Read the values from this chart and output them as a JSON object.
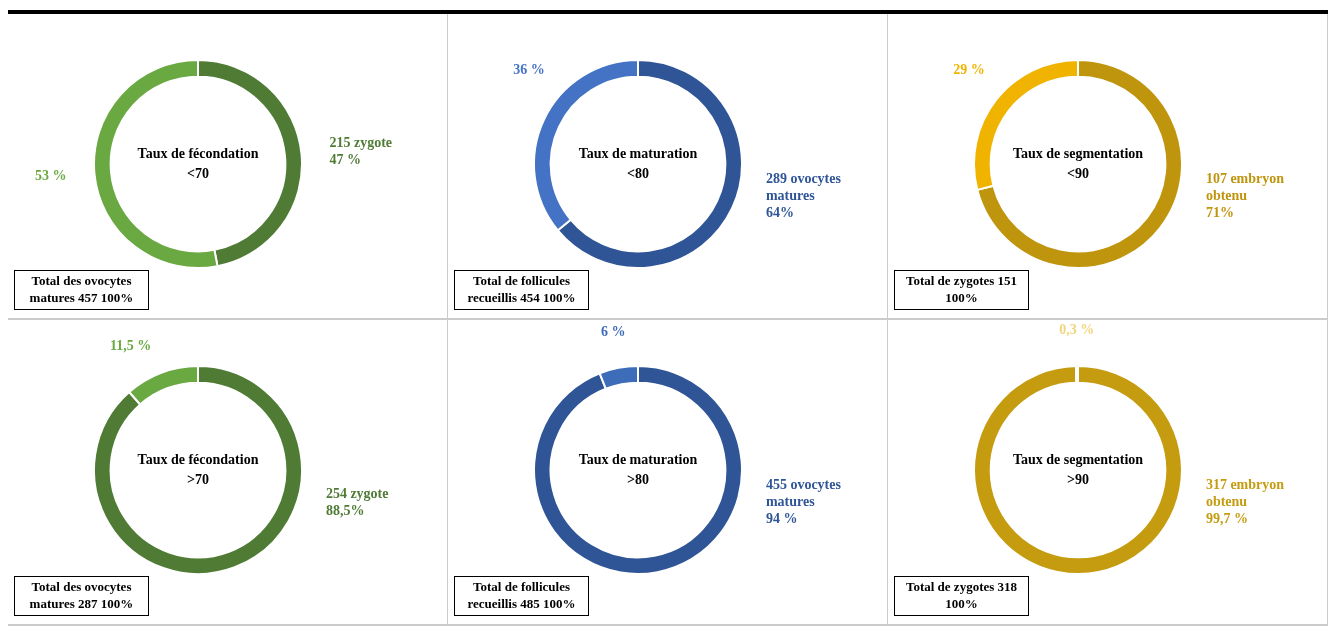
{
  "chart_data": [
    {
      "type": "donut",
      "title": "Taux de fécondation",
      "subtitle": "<70",
      "categories": [
        "215 zygote",
        null
      ],
      "values": [
        47,
        53
      ],
      "colors": [
        "#4f7b35",
        "#6aa842"
      ],
      "value_labels": [
        "47 %",
        "53 %"
      ],
      "annotations": [
        "Total des ovocytes matures 457 100%"
      ]
    },
    {
      "type": "donut",
      "title": "Taux de maturation",
      "subtitle": "<80",
      "categories": [
        "289 ovocytes matures",
        null
      ],
      "values": [
        64,
        36
      ],
      "colors": [
        "#2f5597",
        "#4472c4"
      ],
      "value_labels": [
        "64%",
        "36 %"
      ],
      "annotations": [
        "Total de follicules recueillis 454 100%"
      ]
    },
    {
      "type": "donut",
      "title": "Taux de segmentation",
      "subtitle": "<90",
      "categories": [
        "107 embryon obtenu",
        null
      ],
      "values": [
        71,
        29
      ],
      "colors": [
        "#c0950e",
        "#f0b400"
      ],
      "value_labels": [
        "71%",
        "29 %"
      ],
      "annotations": [
        "Total de zygotes 151 100%"
      ]
    },
    {
      "type": "donut",
      "title": "Taux de fécondation",
      "subtitle": ">70",
      "categories": [
        "254 zygote",
        null
      ],
      "values": [
        88.5,
        11.5
      ],
      "colors": [
        "#4f7b35",
        "#6aa842"
      ],
      "value_labels": [
        "88,5%",
        "11,5 %"
      ],
      "annotations": [
        "Total des ovocytes matures 287 100%"
      ]
    },
    {
      "type": "donut",
      "title": "Taux de maturation",
      "subtitle": ">80",
      "categories": [
        "455 ovocytes matures",
        null
      ],
      "values": [
        94,
        6
      ],
      "colors": [
        "#2f5597",
        "#3d6cb8"
      ],
      "value_labels": [
        "94 %",
        "6 %"
      ],
      "annotations": [
        "Total de follicules recueillis 485 100%"
      ]
    },
    {
      "type": "donut",
      "title": "Taux de segmentation",
      "subtitle": ">90",
      "categories": [
        "317 embryon obtenu",
        null
      ],
      "values": [
        99.7,
        0.3
      ],
      "colors": [
        "#c59c10",
        "#f2d57a"
      ],
      "value_labels": [
        "99,7 %",
        "0,3 %"
      ],
      "annotations": [
        "Total de zygotes 318 100%"
      ]
    }
  ]
}
